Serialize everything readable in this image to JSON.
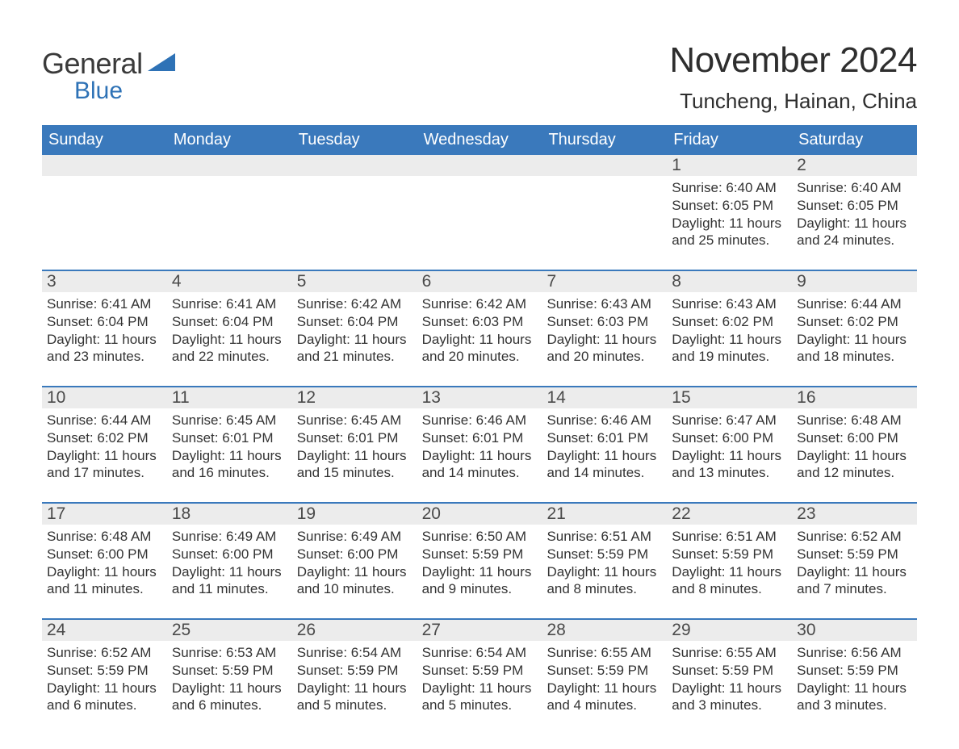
{
  "brand": {
    "part1": "General",
    "part2": "Blue",
    "triangle_color": "#2e72b6"
  },
  "title": "November 2024",
  "location": "Tuncheng, Hainan, China",
  "colors": {
    "header_bg": "#3a79bc",
    "header_text": "#ffffff",
    "daynum_bg": "#ececec",
    "body_text": "#333333",
    "row_divider": "#3a79bc",
    "page_bg": "#ffffff"
  },
  "typography": {
    "title_fontsize": 44,
    "location_fontsize": 26,
    "weekday_fontsize": 20,
    "daynum_fontsize": 21,
    "body_fontsize": 17
  },
  "weekdays": [
    "Sunday",
    "Monday",
    "Tuesday",
    "Wednesday",
    "Thursday",
    "Friday",
    "Saturday"
  ],
  "labels": {
    "sunrise": "Sunrise:",
    "sunset": "Sunset:",
    "daylight": "Daylight:"
  },
  "weeks": [
    [
      null,
      null,
      null,
      null,
      null,
      {
        "day": "1",
        "sunrise": "6:40 AM",
        "sunset": "6:05 PM",
        "daylight": "11 hours and 25 minutes."
      },
      {
        "day": "2",
        "sunrise": "6:40 AM",
        "sunset": "6:05 PM",
        "daylight": "11 hours and 24 minutes."
      }
    ],
    [
      {
        "day": "3",
        "sunrise": "6:41 AM",
        "sunset": "6:04 PM",
        "daylight": "11 hours and 23 minutes."
      },
      {
        "day": "4",
        "sunrise": "6:41 AM",
        "sunset": "6:04 PM",
        "daylight": "11 hours and 22 minutes."
      },
      {
        "day": "5",
        "sunrise": "6:42 AM",
        "sunset": "6:04 PM",
        "daylight": "11 hours and 21 minutes."
      },
      {
        "day": "6",
        "sunrise": "6:42 AM",
        "sunset": "6:03 PM",
        "daylight": "11 hours and 20 minutes."
      },
      {
        "day": "7",
        "sunrise": "6:43 AM",
        "sunset": "6:03 PM",
        "daylight": "11 hours and 20 minutes."
      },
      {
        "day": "8",
        "sunrise": "6:43 AM",
        "sunset": "6:02 PM",
        "daylight": "11 hours and 19 minutes."
      },
      {
        "day": "9",
        "sunrise": "6:44 AM",
        "sunset": "6:02 PM",
        "daylight": "11 hours and 18 minutes."
      }
    ],
    [
      {
        "day": "10",
        "sunrise": "6:44 AM",
        "sunset": "6:02 PM",
        "daylight": "11 hours and 17 minutes."
      },
      {
        "day": "11",
        "sunrise": "6:45 AM",
        "sunset": "6:01 PM",
        "daylight": "11 hours and 16 minutes."
      },
      {
        "day": "12",
        "sunrise": "6:45 AM",
        "sunset": "6:01 PM",
        "daylight": "11 hours and 15 minutes."
      },
      {
        "day": "13",
        "sunrise": "6:46 AM",
        "sunset": "6:01 PM",
        "daylight": "11 hours and 14 minutes."
      },
      {
        "day": "14",
        "sunrise": "6:46 AM",
        "sunset": "6:01 PM",
        "daylight": "11 hours and 14 minutes."
      },
      {
        "day": "15",
        "sunrise": "6:47 AM",
        "sunset": "6:00 PM",
        "daylight": "11 hours and 13 minutes."
      },
      {
        "day": "16",
        "sunrise": "6:48 AM",
        "sunset": "6:00 PM",
        "daylight": "11 hours and 12 minutes."
      }
    ],
    [
      {
        "day": "17",
        "sunrise": "6:48 AM",
        "sunset": "6:00 PM",
        "daylight": "11 hours and 11 minutes."
      },
      {
        "day": "18",
        "sunrise": "6:49 AM",
        "sunset": "6:00 PM",
        "daylight": "11 hours and 11 minutes."
      },
      {
        "day": "19",
        "sunrise": "6:49 AM",
        "sunset": "6:00 PM",
        "daylight": "11 hours and 10 minutes."
      },
      {
        "day": "20",
        "sunrise": "6:50 AM",
        "sunset": "5:59 PM",
        "daylight": "11 hours and 9 minutes."
      },
      {
        "day": "21",
        "sunrise": "6:51 AM",
        "sunset": "5:59 PM",
        "daylight": "11 hours and 8 minutes."
      },
      {
        "day": "22",
        "sunrise": "6:51 AM",
        "sunset": "5:59 PM",
        "daylight": "11 hours and 8 minutes."
      },
      {
        "day": "23",
        "sunrise": "6:52 AM",
        "sunset": "5:59 PM",
        "daylight": "11 hours and 7 minutes."
      }
    ],
    [
      {
        "day": "24",
        "sunrise": "6:52 AM",
        "sunset": "5:59 PM",
        "daylight": "11 hours and 6 minutes."
      },
      {
        "day": "25",
        "sunrise": "6:53 AM",
        "sunset": "5:59 PM",
        "daylight": "11 hours and 6 minutes."
      },
      {
        "day": "26",
        "sunrise": "6:54 AM",
        "sunset": "5:59 PM",
        "daylight": "11 hours and 5 minutes."
      },
      {
        "day": "27",
        "sunrise": "6:54 AM",
        "sunset": "5:59 PM",
        "daylight": "11 hours and 5 minutes."
      },
      {
        "day": "28",
        "sunrise": "6:55 AM",
        "sunset": "5:59 PM",
        "daylight": "11 hours and 4 minutes."
      },
      {
        "day": "29",
        "sunrise": "6:55 AM",
        "sunset": "5:59 PM",
        "daylight": "11 hours and 3 minutes."
      },
      {
        "day": "30",
        "sunrise": "6:56 AM",
        "sunset": "5:59 PM",
        "daylight": "11 hours and 3 minutes."
      }
    ]
  ]
}
